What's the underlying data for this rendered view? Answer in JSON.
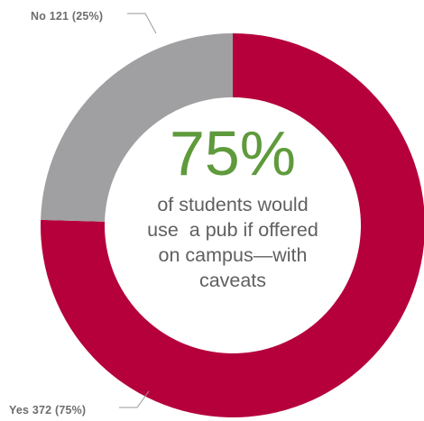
{
  "chart_data": {
    "type": "pie",
    "style": "donut",
    "slices": [
      {
        "label": "Yes",
        "value": 372,
        "percent": 75,
        "display": "Yes 372 (75%)",
        "color": "#b5003c"
      },
      {
        "label": "No",
        "value": 121,
        "percent": 25,
        "display": "No 121 (25%)",
        "color": "#a0a0a3"
      }
    ],
    "center": {
      "headline": "75%",
      "headline_color": "#5f9a3c",
      "lines": [
        "of students would",
        "use  a pub if offered",
        "on campus—with",
        "caveats"
      ]
    }
  }
}
